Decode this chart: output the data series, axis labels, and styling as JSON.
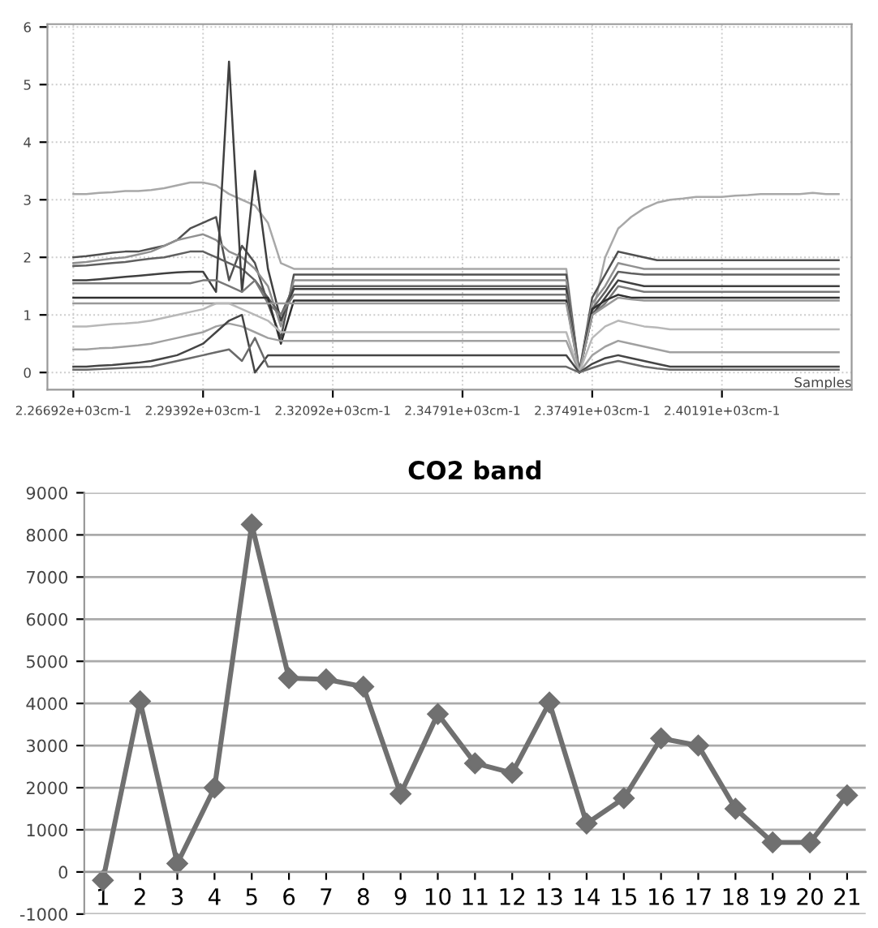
{
  "chart_data": [
    {
      "type": "line",
      "xlabel": "Samples",
      "grid": true,
      "ylim": [
        -0.3,
        6.05
      ],
      "yticks": [
        0,
        1,
        2,
        3,
        4,
        5,
        6
      ],
      "categories": [
        "2.26692e+03cm-1",
        null,
        null,
        null,
        null,
        null,
        null,
        null,
        null,
        null,
        "2.29392e+03cm-1",
        null,
        null,
        null,
        null,
        null,
        null,
        null,
        null,
        null,
        "2.32092e+03cm-1",
        null,
        null,
        null,
        null,
        null,
        null,
        null,
        null,
        null,
        "2.34791e+03cm-1",
        null,
        null,
        null,
        null,
        null,
        null,
        null,
        null,
        null,
        "2.37491e+03cm-1",
        null,
        null,
        null,
        null,
        null,
        null,
        null,
        null,
        null,
        "2.40191e+03cm-1",
        null,
        null,
        null,
        null,
        null,
        null,
        null,
        null,
        null
      ],
      "series": [
        {
          "color": "#a8a8a8",
          "values": [
            3.1,
            3.1,
            3.12,
            3.13,
            3.15,
            3.15,
            3.17,
            3.2,
            3.25,
            3.3,
            3.3,
            3.25,
            3.1,
            3.0,
            2.9,
            2.6,
            1.9,
            1.8,
            1.8,
            1.8,
            1.8,
            1.8,
            1.8,
            1.8,
            1.8,
            1.8,
            1.8,
            1.8,
            1.8,
            1.8,
            1.8,
            1.8,
            1.8,
            1.8,
            1.8,
            1.8,
            1.8,
            1.8,
            1.8,
            0,
            1.0,
            2.0,
            2.5,
            2.7,
            2.85,
            2.95,
            3.0,
            3.02,
            3.05,
            3.05,
            3.05,
            3.07,
            3.08,
            3.1,
            3.1,
            3.1,
            3.1,
            3.12,
            3.1,
            3.1
          ]
        },
        {
          "color": "#505050",
          "values": [
            2.0,
            2.02,
            2.05,
            2.08,
            2.1,
            2.1,
            2.15,
            2.2,
            2.3,
            2.5,
            2.6,
            2.7,
            1.6,
            2.2,
            1.9,
            1.2,
            0.6,
            1.7,
            1.7,
            1.7,
            1.7,
            1.7,
            1.7,
            1.7,
            1.7,
            1.7,
            1.7,
            1.7,
            1.7,
            1.7,
            1.7,
            1.7,
            1.7,
            1.7,
            1.7,
            1.7,
            1.7,
            1.7,
            1.7,
            0,
            1.3,
            1.7,
            2.1,
            2.05,
            2.0,
            1.95,
            1.95,
            1.95,
            1.95,
            1.95,
            1.95,
            1.95,
            1.95,
            1.95,
            1.95,
            1.95,
            1.95,
            1.95,
            1.95,
            1.95
          ]
        },
        {
          "color": "#909090",
          "values": [
            1.9,
            1.92,
            1.95,
            1.98,
            2.0,
            2.05,
            2.1,
            2.2,
            2.3,
            2.35,
            2.4,
            2.3,
            2.1,
            2.0,
            1.8,
            1.5,
            0.8,
            1.6,
            1.6,
            1.6,
            1.6,
            1.6,
            1.6,
            1.6,
            1.6,
            1.6,
            1.6,
            1.6,
            1.6,
            1.6,
            1.6,
            1.6,
            1.6,
            1.6,
            1.6,
            1.6,
            1.6,
            1.6,
            1.6,
            0,
            1.2,
            1.5,
            1.9,
            1.85,
            1.8,
            1.8,
            1.8,
            1.8,
            1.8,
            1.8,
            1.8,
            1.8,
            1.8,
            1.8,
            1.8,
            1.8,
            1.8,
            1.8,
            1.8,
            1.8
          ]
        },
        {
          "color": "#606060",
          "values": [
            1.85,
            1.86,
            1.88,
            1.9,
            1.92,
            1.95,
            1.98,
            2.0,
            2.05,
            2.1,
            2.1,
            2.0,
            1.9,
            1.8,
            1.6,
            1.3,
            1.0,
            1.5,
            1.5,
            1.5,
            1.5,
            1.5,
            1.5,
            1.5,
            1.5,
            1.5,
            1.5,
            1.5,
            1.5,
            1.5,
            1.5,
            1.5,
            1.5,
            1.5,
            1.5,
            1.5,
            1.5,
            1.5,
            1.5,
            0,
            1.1,
            1.4,
            1.75,
            1.72,
            1.7,
            1.7,
            1.7,
            1.7,
            1.7,
            1.7,
            1.7,
            1.7,
            1.7,
            1.7,
            1.7,
            1.7,
            1.7,
            1.7,
            1.7,
            1.7
          ]
        },
        {
          "color": "#404040",
          "values": [
            1.6,
            1.6,
            1.62,
            1.64,
            1.66,
            1.68,
            1.7,
            1.72,
            1.74,
            1.75,
            1.75,
            1.4,
            5.4,
            1.4,
            3.5,
            1.8,
            0.9,
            1.45,
            1.45,
            1.45,
            1.45,
            1.45,
            1.45,
            1.45,
            1.45,
            1.45,
            1.45,
            1.45,
            1.45,
            1.45,
            1.45,
            1.45,
            1.45,
            1.45,
            1.45,
            1.45,
            1.45,
            1.45,
            1.45,
            0,
            1.0,
            1.3,
            1.6,
            1.55,
            1.5,
            1.5,
            1.5,
            1.5,
            1.5,
            1.5,
            1.5,
            1.5,
            1.5,
            1.5,
            1.5,
            1.5,
            1.5,
            1.5,
            1.5,
            1.5
          ]
        },
        {
          "color": "#787878",
          "values": [
            1.55,
            1.55,
            1.55,
            1.55,
            1.55,
            1.55,
            1.55,
            1.55,
            1.55,
            1.55,
            1.6,
            1.6,
            1.5,
            1.4,
            1.6,
            1.2,
            1.0,
            1.35,
            1.35,
            1.35,
            1.35,
            1.35,
            1.35,
            1.35,
            1.35,
            1.35,
            1.35,
            1.35,
            1.35,
            1.35,
            1.35,
            1.35,
            1.35,
            1.35,
            1.35,
            1.35,
            1.35,
            1.35,
            1.35,
            0,
            1.0,
            1.2,
            1.5,
            1.45,
            1.4,
            1.4,
            1.4,
            1.4,
            1.4,
            1.4,
            1.4,
            1.4,
            1.4,
            1.4,
            1.4,
            1.4,
            1.4,
            1.4,
            1.4,
            1.4
          ]
        },
        {
          "color": "#303030",
          "values": [
            1.3,
            1.3,
            1.3,
            1.3,
            1.3,
            1.3,
            1.3,
            1.3,
            1.3,
            1.3,
            1.3,
            1.3,
            1.3,
            1.3,
            1.3,
            1.3,
            0.5,
            1.25,
            1.25,
            1.25,
            1.25,
            1.25,
            1.25,
            1.25,
            1.25,
            1.25,
            1.25,
            1.25,
            1.25,
            1.25,
            1.25,
            1.25,
            1.25,
            1.25,
            1.25,
            1.25,
            1.25,
            1.25,
            1.25,
            0,
            1.1,
            1.25,
            1.35,
            1.3,
            1.3,
            1.3,
            1.3,
            1.3,
            1.3,
            1.3,
            1.3,
            1.3,
            1.3,
            1.3,
            1.3,
            1.3,
            1.3,
            1.3,
            1.3,
            1.3
          ]
        },
        {
          "color": "#989898",
          "values": [
            1.2,
            1.2,
            1.2,
            1.2,
            1.2,
            1.2,
            1.2,
            1.2,
            1.2,
            1.2,
            1.2,
            1.2,
            1.2,
            1.2,
            1.2,
            1.2,
            1.2,
            1.2,
            1.2,
            1.2,
            1.2,
            1.2,
            1.2,
            1.2,
            1.2,
            1.2,
            1.2,
            1.2,
            1.2,
            1.2,
            1.2,
            1.2,
            1.2,
            1.2,
            1.2,
            1.2,
            1.2,
            1.2,
            1.2,
            0,
            1.0,
            1.15,
            1.3,
            1.27,
            1.25,
            1.25,
            1.25,
            1.25,
            1.25,
            1.25,
            1.25,
            1.25,
            1.25,
            1.25,
            1.25,
            1.25,
            1.25,
            1.25,
            1.25,
            1.25
          ]
        },
        {
          "color": "#b8b8b8",
          "values": [
            0.8,
            0.8,
            0.82,
            0.84,
            0.85,
            0.87,
            0.9,
            0.95,
            1.0,
            1.05,
            1.1,
            1.2,
            1.2,
            1.1,
            1.0,
            0.9,
            0.7,
            0.7,
            0.7,
            0.7,
            0.7,
            0.7,
            0.7,
            0.7,
            0.7,
            0.7,
            0.7,
            0.7,
            0.7,
            0.7,
            0.7,
            0.7,
            0.7,
            0.7,
            0.7,
            0.7,
            0.7,
            0.7,
            0.7,
            0,
            0.6,
            0.8,
            0.9,
            0.85,
            0.8,
            0.78,
            0.75,
            0.75,
            0.75,
            0.75,
            0.75,
            0.75,
            0.75,
            0.75,
            0.75,
            0.75,
            0.75,
            0.75,
            0.75,
            0.75
          ]
        },
        {
          "color": "#a0a0a0",
          "values": [
            0.4,
            0.4,
            0.42,
            0.43,
            0.45,
            0.47,
            0.5,
            0.55,
            0.6,
            0.65,
            0.7,
            0.8,
            0.85,
            0.8,
            0.7,
            0.6,
            0.55,
            0.55,
            0.55,
            0.55,
            0.55,
            0.55,
            0.55,
            0.55,
            0.55,
            0.55,
            0.55,
            0.55,
            0.55,
            0.55,
            0.55,
            0.55,
            0.55,
            0.55,
            0.55,
            0.55,
            0.55,
            0.55,
            0.55,
            0,
            0.3,
            0.45,
            0.55,
            0.5,
            0.45,
            0.4,
            0.35,
            0.35,
            0.35,
            0.35,
            0.35,
            0.35,
            0.35,
            0.35,
            0.35,
            0.35,
            0.35,
            0.35,
            0.35,
            0.35
          ]
        },
        {
          "color": "#454545",
          "values": [
            0.1,
            0.1,
            0.12,
            0.13,
            0.15,
            0.17,
            0.2,
            0.25,
            0.3,
            0.4,
            0.5,
            0.7,
            0.9,
            1.0,
            0,
            0.3,
            0.3,
            0.3,
            0.3,
            0.3,
            0.3,
            0.3,
            0.3,
            0.3,
            0.3,
            0.3,
            0.3,
            0.3,
            0.3,
            0.3,
            0.3,
            0.3,
            0.3,
            0.3,
            0.3,
            0.3,
            0.3,
            0.3,
            0.3,
            0,
            0.15,
            0.25,
            0.3,
            0.25,
            0.2,
            0.15,
            0.1,
            0.1,
            0.1,
            0.1,
            0.1,
            0.1,
            0.1,
            0.1,
            0.1,
            0.1,
            0.1,
            0.1,
            0.1,
            0.1
          ]
        },
        {
          "color": "#6a6a6a",
          "values": [
            0.05,
            0.05,
            0.06,
            0.07,
            0.08,
            0.09,
            0.1,
            0.15,
            0.2,
            0.25,
            0.3,
            0.35,
            0.4,
            0.2,
            0.6,
            0.1,
            0.1,
            0.1,
            0.1,
            0.1,
            0.1,
            0.1,
            0.1,
            0.1,
            0.1,
            0.1,
            0.1,
            0.1,
            0.1,
            0.1,
            0.1,
            0.1,
            0.1,
            0.1,
            0.1,
            0.1,
            0.1,
            0.1,
            0.1,
            0,
            0.08,
            0.15,
            0.2,
            0.15,
            0.1,
            0.07,
            0.05,
            0.05,
            0.05,
            0.05,
            0.05,
            0.05,
            0.05,
            0.05,
            0.05,
            0.05,
            0.05,
            0.05,
            0.05,
            0.05
          ]
        }
      ]
    },
    {
      "type": "line",
      "title": "CO2 band",
      "grid": "y",
      "marker": "diamond",
      "categories": [
        "1",
        "2",
        "3",
        "4",
        "5",
        "6",
        "7",
        "8",
        "9",
        "10",
        "11",
        "12",
        "13",
        "14",
        "15",
        "16",
        "17",
        "18",
        "19",
        "20",
        "21"
      ],
      "ylim": [
        -1000,
        9000
      ],
      "yticks": [
        -1000,
        0,
        1000,
        2000,
        3000,
        4000,
        5000,
        6000,
        7000,
        8000,
        9000
      ],
      "series": [
        {
          "color": "#707070",
          "values": [
            -200,
            4050,
            200,
            2000,
            8250,
            4600,
            4570,
            4400,
            1850,
            3750,
            2580,
            2350,
            4020,
            1150,
            1750,
            3170,
            3000,
            1500,
            700,
            700,
            1820
          ]
        }
      ]
    }
  ]
}
